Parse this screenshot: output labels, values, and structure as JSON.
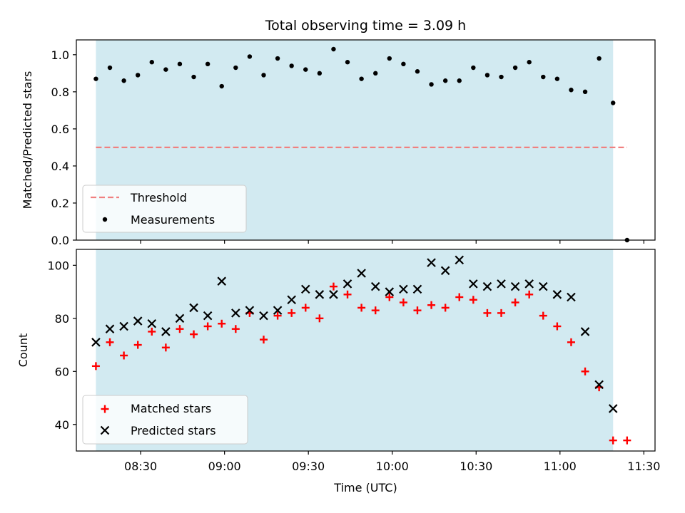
{
  "chart_data": [
    {
      "type": "scatter",
      "title": "Total observing time = 3.09 h",
      "xlabel": "",
      "ylabel": "Matched/Predicted stars",
      "ylim": [
        0,
        1.08
      ],
      "xlim": [
        "08:07",
        "11:34"
      ],
      "yticks": [
        "0.0",
        "0.2",
        "0.4",
        "0.6",
        "0.8",
        "1.0"
      ],
      "shaded_span": [
        "08:14",
        "11:19"
      ],
      "shaded_color": "#add8e6",
      "threshold": {
        "name": "Threshold",
        "value": 0.5,
        "x_range": [
          "08:14",
          "11:24"
        ],
        "color": "#f08080",
        "style": "dashed"
      },
      "series": [
        {
          "name": "Measurements",
          "color": "#000000",
          "marker": "dot",
          "x": [
            "08:14",
            "08:19",
            "08:24",
            "08:29",
            "08:34",
            "08:39",
            "08:44",
            "08:49",
            "08:54",
            "08:59",
            "09:04",
            "09:09",
            "09:14",
            "09:19",
            "09:24",
            "09:29",
            "09:34",
            "09:39",
            "09:44",
            "09:49",
            "09:54",
            "09:59",
            "10:04",
            "10:09",
            "10:14",
            "10:19",
            "10:24",
            "10:29",
            "10:34",
            "10:39",
            "10:44",
            "10:49",
            "10:54",
            "10:59",
            "11:04",
            "11:09",
            "11:14",
            "11:19",
            "11:24"
          ],
          "y": [
            0.87,
            0.93,
            0.86,
            0.89,
            0.96,
            0.92,
            0.95,
            0.88,
            0.95,
            0.83,
            0.93,
            0.99,
            0.89,
            0.98,
            0.94,
            0.92,
            0.9,
            1.03,
            0.96,
            0.87,
            0.9,
            0.98,
            0.95,
            0.91,
            0.84,
            0.86,
            0.86,
            0.93,
            0.89,
            0.88,
            0.93,
            0.96,
            0.88,
            0.87,
            0.81,
            0.8,
            0.98,
            0.74,
            0.0
          ]
        }
      ],
      "legend": {
        "position": "lower-left",
        "entries": [
          "Threshold",
          "Measurements"
        ]
      },
      "grid": false
    },
    {
      "type": "scatter",
      "title": "",
      "xlabel": "Time (UTC)",
      "ylabel": "Count",
      "ylim": [
        30,
        106
      ],
      "xlim": [
        "08:07",
        "11:34"
      ],
      "yticks": [
        "40",
        "60",
        "80",
        "100"
      ],
      "xticks": [
        "08:30",
        "09:00",
        "09:30",
        "10:00",
        "10:30",
        "11:00",
        "11:30"
      ],
      "shaded_span": [
        "08:14",
        "11:19"
      ],
      "shaded_color": "#add8e6",
      "series": [
        {
          "name": "Matched stars",
          "color": "#ff0000",
          "marker": "plus",
          "x": [
            "08:14",
            "08:19",
            "08:24",
            "08:29",
            "08:34",
            "08:39",
            "08:44",
            "08:49",
            "08:54",
            "08:59",
            "09:04",
            "09:09",
            "09:14",
            "09:19",
            "09:24",
            "09:29",
            "09:34",
            "09:39",
            "09:44",
            "09:49",
            "09:54",
            "09:59",
            "10:04",
            "10:09",
            "10:14",
            "10:19",
            "10:24",
            "10:29",
            "10:34",
            "10:39",
            "10:44",
            "10:49",
            "10:54",
            "10:59",
            "11:04",
            "11:09",
            "11:14",
            "11:19",
            "11:24"
          ],
          "y": [
            62,
            71,
            66,
            70,
            75,
            69,
            76,
            74,
            77,
            78,
            76,
            82,
            72,
            81,
            82,
            84,
            80,
            92,
            89,
            84,
            83,
            88,
            86,
            83,
            85,
            84,
            88,
            87,
            82,
            82,
            86,
            89,
            81,
            77,
            71,
            60,
            54,
            34,
            34
          ]
        },
        {
          "name": "Predicted stars",
          "color": "#000000",
          "marker": "x",
          "x": [
            "08:14",
            "08:19",
            "08:24",
            "08:29",
            "08:34",
            "08:39",
            "08:44",
            "08:49",
            "08:54",
            "08:59",
            "09:04",
            "09:09",
            "09:14",
            "09:19",
            "09:24",
            "09:29",
            "09:34",
            "09:39",
            "09:44",
            "09:49",
            "09:54",
            "09:59",
            "10:04",
            "10:09",
            "10:14",
            "10:19",
            "10:24",
            "10:29",
            "10:34",
            "10:39",
            "10:44",
            "10:49",
            "10:54",
            "10:59",
            "11:04",
            "11:09",
            "11:14",
            "11:19"
          ],
          "y": [
            71,
            76,
            77,
            79,
            78,
            75,
            80,
            84,
            81,
            94,
            82,
            83,
            81,
            83,
            87,
            91,
            89,
            89,
            93,
            97,
            92,
            90,
            91,
            91,
            101,
            98,
            102,
            93,
            92,
            93,
            92,
            93,
            92,
            89,
            88,
            75,
            55,
            46
          ]
        }
      ],
      "legend": {
        "position": "lower-left",
        "entries": [
          "Matched stars",
          "Predicted stars"
        ]
      },
      "grid": false
    }
  ]
}
